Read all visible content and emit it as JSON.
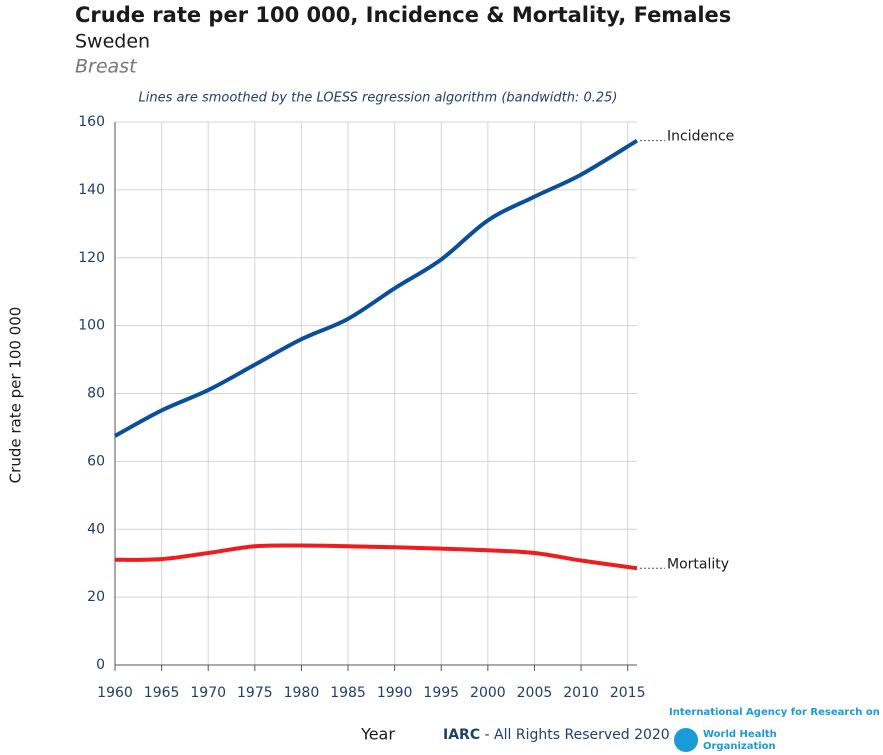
{
  "chart_data": {
    "type": "line",
    "title": "Crude rate per 100 000, Incidence & Mortality, Females",
    "subtitle": "Sweden",
    "site": "Breast",
    "note": "Lines are smoothed by the LOESS regression algorithm (bandwidth: 0.25)",
    "x_label": "Year",
    "y_label": "Crude rate per 100 000",
    "x": [
      1960,
      1965,
      1970,
      1975,
      1980,
      1985,
      1990,
      1995,
      2000,
      2005,
      2010,
      2016
    ],
    "series": [
      {
        "name": "Incidence",
        "color": "#0b4f9c",
        "values": [
          67.5,
          75,
          81,
          88.5,
          96,
          102,
          111,
          119.5,
          131,
          138,
          144.5,
          154.5
        ]
      },
      {
        "name": "Mortality",
        "color": "#ee1c1c",
        "values": [
          31,
          31.2,
          33,
          35,
          35.2,
          35,
          34.7,
          34.3,
          33.8,
          33,
          30.8,
          28.5
        ]
      }
    ],
    "xlim": [
      1960,
      2016
    ],
    "xticks": [
      1960,
      1965,
      1970,
      1975,
      1980,
      1985,
      1990,
      1995,
      2000,
      2005,
      2010,
      2015
    ],
    "ylim": [
      0,
      160
    ],
    "yticks": [
      0,
      20,
      40,
      60,
      80,
      100,
      120,
      140,
      160
    ],
    "grid": true,
    "footer": {
      "credit_org": "IARC",
      "credit_text": " - All Rights Reserved 2020",
      "agency": "International Agency for Research on Cancer",
      "who": [
        "World Health",
        "Organization"
      ]
    }
  }
}
